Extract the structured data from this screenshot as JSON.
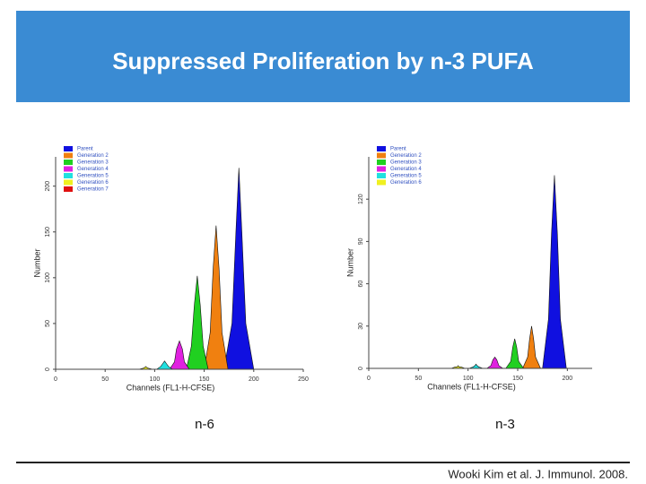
{
  "title": "Suppressed Proliferation by n-3 PUFA",
  "citation": "Wooki Kim et al. J. Immunol. 2008.",
  "chart_data": [
    {
      "type": "area",
      "caption": "n-6",
      "xlabel": "Channels (FL1-H-CFSE)",
      "ylabel": "Number",
      "xlim": [
        0,
        250
      ],
      "xticks": [
        0,
        50,
        100,
        150,
        200,
        250
      ],
      "ylim": [
        0,
        232
      ],
      "yticks": [
        0,
        50,
        100,
        150,
        200
      ],
      "series": [
        {
          "name": "Parent",
          "color": "#1010e0",
          "x": [
            170,
            178,
            182,
            185,
            188,
            192,
            200
          ],
          "values": [
            0,
            50,
            150,
            220,
            150,
            50,
            0
          ]
        },
        {
          "name": "Generation 2",
          "color": "#f08010",
          "x": [
            150,
            156,
            159,
            162,
            165,
            168,
            174
          ],
          "values": [
            0,
            40,
            110,
            157,
            110,
            40,
            0
          ]
        },
        {
          "name": "Generation 3",
          "color": "#20d020",
          "x": [
            132,
            137,
            140,
            143,
            146,
            149,
            154
          ],
          "values": [
            0,
            25,
            70,
            102,
            70,
            25,
            0
          ]
        },
        {
          "name": "Generation 4",
          "color": "#e020e0",
          "x": [
            115,
            120,
            122,
            125,
            128,
            130,
            135
          ],
          "values": [
            0,
            8,
            22,
            31,
            22,
            8,
            0
          ]
        },
        {
          "name": "Generation 5",
          "color": "#20e0e0",
          "x": [
            102,
            106,
            108,
            110,
            112,
            114,
            118
          ],
          "values": [
            0,
            3,
            6,
            9,
            6,
            3,
            0
          ]
        },
        {
          "name": "Generation 6",
          "color": "#f0f020",
          "x": [
            84,
            88,
            90,
            91,
            92,
            94,
            98
          ],
          "values": [
            0,
            1,
            2,
            3,
            2,
            1,
            0
          ]
        },
        {
          "name": "Generation 7",
          "color": "#e01010",
          "x": [],
          "values": []
        }
      ]
    },
    {
      "type": "area",
      "caption": "n-3",
      "xlabel": "Channels (FL1-H-CFSE)",
      "ylabel": "Number",
      "xlim": [
        0,
        225
      ],
      "xticks": [
        0,
        50,
        100,
        150,
        200
      ],
      "ylim": [
        0,
        150
      ],
      "yticks": [
        0,
        30,
        60,
        90,
        120
      ],
      "series": [
        {
          "name": "Parent",
          "color": "#1010e0",
          "x": [
            175,
            181,
            184,
            187,
            190,
            193,
            199
          ],
          "values": [
            0,
            35,
            95,
            137,
            95,
            35,
            0
          ]
        },
        {
          "name": "Generation 2",
          "color": "#f08010",
          "x": [
            155,
            160,
            162,
            164,
            166,
            168,
            173
          ],
          "values": [
            0,
            8,
            21,
            30,
            21,
            8,
            0
          ]
        },
        {
          "name": "Generation 3",
          "color": "#20d020",
          "x": [
            138,
            143,
            145,
            147,
            149,
            151,
            156
          ],
          "values": [
            0,
            5,
            15,
            21,
            15,
            5,
            0
          ]
        },
        {
          "name": "Generation 4",
          "color": "#e020e0",
          "x": [
            119,
            123,
            125,
            127,
            129,
            131,
            135
          ],
          "values": [
            0,
            2,
            6,
            8,
            6,
            2,
            0
          ]
        },
        {
          "name": "Generation 5",
          "color": "#20e0e0",
          "x": [
            101,
            105,
            107,
            108,
            109,
            111,
            115
          ],
          "values": [
            0,
            1,
            2,
            3,
            2,
            1,
            0
          ]
        },
        {
          "name": "Generation 6",
          "color": "#f0f020",
          "x": [
            83,
            87,
            89,
            90,
            91,
            93,
            97
          ],
          "values": [
            0,
            1,
            1,
            2,
            1,
            1,
            0
          ]
        }
      ]
    }
  ]
}
